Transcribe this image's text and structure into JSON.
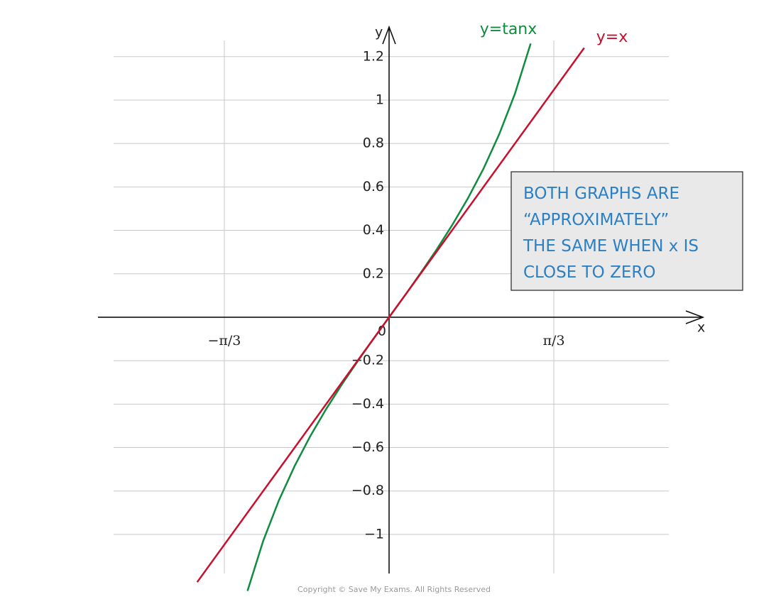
{
  "chart_data": {
    "type": "line",
    "x_label": "x",
    "y_label": "y",
    "xlim": [
      -1.751,
      1.778
    ],
    "ylim": [
      -1.18,
      1.33
    ],
    "xticks": [
      {
        "value": -1.0472,
        "label": "−π/3"
      },
      {
        "value": 1.0472,
        "label": "π/3"
      }
    ],
    "yticks": [
      {
        "value": -1,
        "label": "−1"
      },
      {
        "value": -0.8,
        "label": "−0.8"
      },
      {
        "value": -0.6,
        "label": "−0.6"
      },
      {
        "value": -0.4,
        "label": "−0.4"
      },
      {
        "value": -0.2,
        "label": "−0.2"
      },
      0,
      0.2,
      0.4,
      0.6,
      0.8,
      1,
      1.2
    ],
    "grid": true,
    "series": [
      {
        "name": "y=tanx",
        "color": "#0e8c3f",
        "x": [
          -0.9,
          -0.8,
          -0.7,
          -0.6,
          -0.5,
          -0.4,
          -0.3,
          -0.2,
          -0.1,
          0,
          0.1,
          0.2,
          0.3,
          0.4,
          0.5,
          0.6,
          0.7,
          0.8,
          0.9
        ],
        "values": [
          -1.2602,
          -1.0296,
          -0.8423,
          -0.6841,
          -0.5463,
          -0.4228,
          -0.3093,
          -0.2027,
          -0.1003,
          0,
          0.1003,
          0.2027,
          0.3093,
          0.4228,
          0.5463,
          0.6841,
          0.8423,
          1.0296,
          1.2602
        ]
      },
      {
        "name": "y=x",
        "color": "#c8102e",
        "x": [
          -1.22,
          1.24
        ],
        "values": [
          -1.22,
          1.24
        ]
      }
    ],
    "annotation": [
      "BOTH  GRAPHS  ARE",
      "“APPROXIMATELY”",
      "THE  SAME  WHEN  x  IS",
      "CLOSE  TO  ZERO"
    ],
    "copyright": "Copyright © Save My Exams. All Rights Reserved"
  }
}
